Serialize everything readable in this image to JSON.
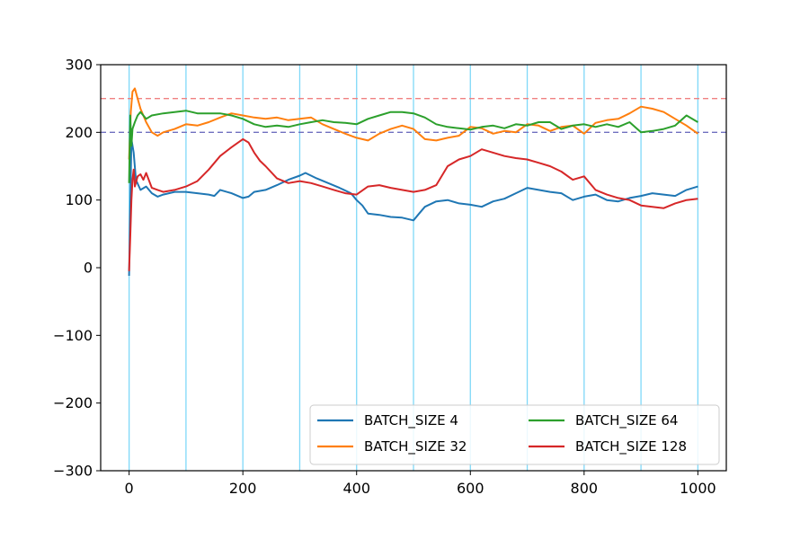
{
  "chart_data": {
    "type": "line",
    "title": "",
    "xlabel": "",
    "ylabel": "",
    "xlim": [
      -50,
      1050
    ],
    "ylim": [
      -300,
      300
    ],
    "xticks": [
      0,
      200,
      400,
      600,
      800,
      1000
    ],
    "yticks": [
      -300,
      -200,
      -100,
      0,
      100,
      200,
      300
    ],
    "xtick_labels": [
      "0",
      "200",
      "400",
      "600",
      "800",
      "1000"
    ],
    "ytick_labels": [
      "−300",
      "−200",
      "−100",
      "0",
      "100",
      "200",
      "300"
    ],
    "vertical_lines": {
      "x": [
        0,
        100,
        200,
        300,
        400,
        500,
        600,
        700,
        800,
        900,
        1000
      ],
      "color": "#7fd8f8"
    },
    "horizontal_lines": [
      {
        "y": 250,
        "color": "#f08080",
        "style": "dashed"
      },
      {
        "y": 200,
        "color": "#7070c0",
        "style": "dashed"
      }
    ],
    "grid": false,
    "legend": {
      "position": "lower-right",
      "columns": 2
    },
    "series": [
      {
        "name": "BATCH_SIZE 4",
        "color": "#1f77b4",
        "x": [
          0,
          4,
          8,
          12,
          20,
          30,
          40,
          50,
          60,
          80,
          100,
          120,
          140,
          150,
          160,
          180,
          200,
          210,
          220,
          240,
          260,
          280,
          300,
          310,
          330,
          350,
          370,
          390,
          400,
          410,
          420,
          440,
          460,
          480,
          500,
          510,
          520,
          540,
          560,
          580,
          600,
          620,
          640,
          660,
          680,
          700,
          720,
          740,
          760,
          780,
          800,
          820,
          840,
          860,
          880,
          900,
          920,
          940,
          960,
          980,
          1000
        ],
        "y": [
          -12,
          190,
          170,
          130,
          115,
          120,
          110,
          105,
          108,
          112,
          112,
          110,
          108,
          106,
          115,
          110,
          103,
          105,
          112,
          115,
          122,
          130,
          136,
          140,
          132,
          125,
          118,
          110,
          100,
          92,
          80,
          78,
          75,
          74,
          70,
          80,
          90,
          98,
          100,
          95,
          93,
          90,
          98,
          102,
          110,
          118,
          115,
          112,
          110,
          100,
          105,
          108,
          100,
          98,
          103,
          106,
          110,
          108,
          106,
          115,
          120
        ]
      },
      {
        "name": "BATCH_SIZE 32",
        "color": "#ff7f0e",
        "x": [
          0,
          3,
          6,
          10,
          15,
          20,
          30,
          40,
          50,
          60,
          80,
          100,
          120,
          140,
          160,
          180,
          200,
          220,
          240,
          260,
          280,
          300,
          320,
          340,
          360,
          380,
          400,
          420,
          440,
          460,
          480,
          500,
          520,
          540,
          560,
          580,
          600,
          620,
          640,
          660,
          680,
          700,
          720,
          740,
          760,
          780,
          800,
          820,
          840,
          860,
          880,
          900,
          920,
          940,
          960,
          980,
          1000
        ],
        "y": [
          160,
          230,
          260,
          265,
          250,
          235,
          215,
          200,
          195,
          200,
          205,
          212,
          210,
          215,
          222,
          228,
          225,
          222,
          220,
          222,
          218,
          220,
          222,
          212,
          205,
          198,
          192,
          188,
          198,
          205,
          210,
          205,
          190,
          188,
          192,
          195,
          208,
          206,
          198,
          202,
          200,
          212,
          210,
          202,
          208,
          210,
          198,
          214,
          218,
          220,
          228,
          238,
          235,
          230,
          220,
          210,
          198
        ]
      },
      {
        "name": "BATCH_SIZE 64",
        "color": "#2ca02c",
        "x": [
          0,
          2,
          4,
          6,
          10,
          15,
          20,
          30,
          40,
          60,
          80,
          100,
          120,
          140,
          160,
          180,
          200,
          220,
          240,
          260,
          280,
          300,
          320,
          340,
          360,
          380,
          400,
          420,
          440,
          460,
          480,
          500,
          520,
          540,
          560,
          580,
          600,
          620,
          640,
          660,
          680,
          700,
          720,
          740,
          760,
          780,
          800,
          820,
          840,
          860,
          880,
          900,
          920,
          940,
          960,
          980,
          1000
        ],
        "y": [
          125,
          225,
          180,
          205,
          215,
          225,
          230,
          220,
          225,
          228,
          230,
          232,
          228,
          228,
          228,
          225,
          220,
          212,
          208,
          210,
          208,
          212,
          215,
          218,
          215,
          214,
          212,
          220,
          225,
          230,
          230,
          228,
          222,
          212,
          208,
          206,
          204,
          208,
          210,
          206,
          212,
          210,
          215,
          215,
          205,
          210,
          212,
          208,
          212,
          208,
          215,
          200,
          202,
          205,
          210,
          225,
          215
        ]
      },
      {
        "name": "BATCH_SIZE 128",
        "color": "#d62728",
        "x": [
          0,
          2,
          4,
          6,
          8,
          10,
          15,
          20,
          25,
          30,
          40,
          50,
          60,
          80,
          100,
          120,
          140,
          160,
          180,
          200,
          210,
          220,
          230,
          240,
          260,
          280,
          300,
          320,
          340,
          360,
          380,
          400,
          420,
          440,
          460,
          480,
          500,
          520,
          540,
          560,
          580,
          600,
          620,
          640,
          660,
          680,
          700,
          720,
          740,
          760,
          780,
          800,
          820,
          840,
          860,
          880,
          900,
          920,
          940,
          960,
          980,
          1000
        ],
        "y": [
          -5,
          45,
          100,
          130,
          145,
          120,
          135,
          138,
          130,
          140,
          118,
          115,
          112,
          115,
          120,
          128,
          145,
          165,
          178,
          190,
          185,
          170,
          158,
          150,
          132,
          125,
          128,
          125,
          120,
          115,
          110,
          108,
          120,
          122,
          118,
          115,
          112,
          115,
          122,
          150,
          160,
          165,
          175,
          170,
          165,
          162,
          160,
          155,
          150,
          142,
          130,
          135,
          115,
          108,
          103,
          100,
          92,
          90,
          88,
          95,
          100,
          102
        ]
      }
    ]
  }
}
